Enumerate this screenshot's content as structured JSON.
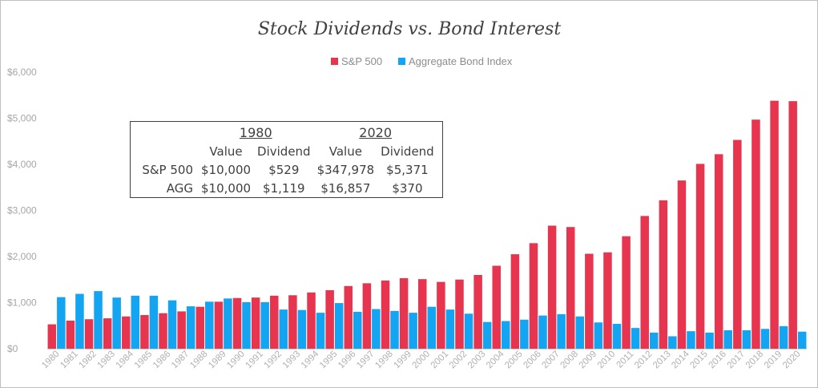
{
  "chart_data": {
    "type": "bar",
    "title": "Stock Dividends vs. Bond Interest",
    "xlabel": "",
    "ylabel": "",
    "ylim": [
      0,
      6000
    ],
    "yticks": [
      0,
      1000,
      2000,
      3000,
      4000,
      5000,
      6000
    ],
    "ytick_labels": [
      "$0",
      "$1,000",
      "$2,000",
      "$3,000",
      "$4,000",
      "$5,000",
      "$6,000"
    ],
    "grid": false,
    "legend_position": "top-center",
    "categories": [
      "1980",
      "1981",
      "1982",
      "1983",
      "1984",
      "1985",
      "1986",
      "1987",
      "1988",
      "1989",
      "1990",
      "1991",
      "1992",
      "1993",
      "1994",
      "1995",
      "1996",
      "1997",
      "1998",
      "1999",
      "2000",
      "2001",
      "2002",
      "2003",
      "2004",
      "2005",
      "2006",
      "2007",
      "2008",
      "2009",
      "2010",
      "2011",
      "2012",
      "2013",
      "2014",
      "2015",
      "2016",
      "2017",
      "2018",
      "2019",
      "2020"
    ],
    "series": [
      {
        "name": "S&P 500",
        "color": "#e8354f",
        "values": [
          529,
          610,
          640,
          660,
          700,
          730,
          770,
          810,
          910,
          1020,
          1100,
          1110,
          1150,
          1160,
          1220,
          1270,
          1360,
          1420,
          1480,
          1530,
          1510,
          1450,
          1500,
          1600,
          1800,
          2050,
          2290,
          2670,
          2640,
          2060,
          2090,
          2440,
          2880,
          3220,
          3650,
          4010,
          4220,
          4530,
          4970,
          5380,
          5371
        ]
      },
      {
        "name": "Aggregate Bond Index",
        "color": "#13a4f2",
        "values": [
          1119,
          1190,
          1250,
          1110,
          1150,
          1150,
          1050,
          920,
          1020,
          1090,
          1010,
          1010,
          850,
          840,
          780,
          990,
          800,
          860,
          820,
          780,
          910,
          850,
          760,
          580,
          600,
          630,
          720,
          750,
          700,
          570,
          540,
          450,
          350,
          270,
          380,
          350,
          400,
          400,
          430,
          490,
          370
        ]
      }
    ]
  },
  "table": {
    "year_headers": [
      "1980",
      "2020"
    ],
    "column_headers": [
      "Value",
      "Dividend",
      "Value",
      "Dividend"
    ],
    "rows": [
      {
        "label": "S&P 500",
        "cells": [
          "$10,000",
          "$529",
          "$347,978",
          "$5,371"
        ]
      },
      {
        "label": "AGG",
        "cells": [
          "$10,000",
          "$1,119",
          "$16,857",
          "$370"
        ]
      }
    ]
  }
}
